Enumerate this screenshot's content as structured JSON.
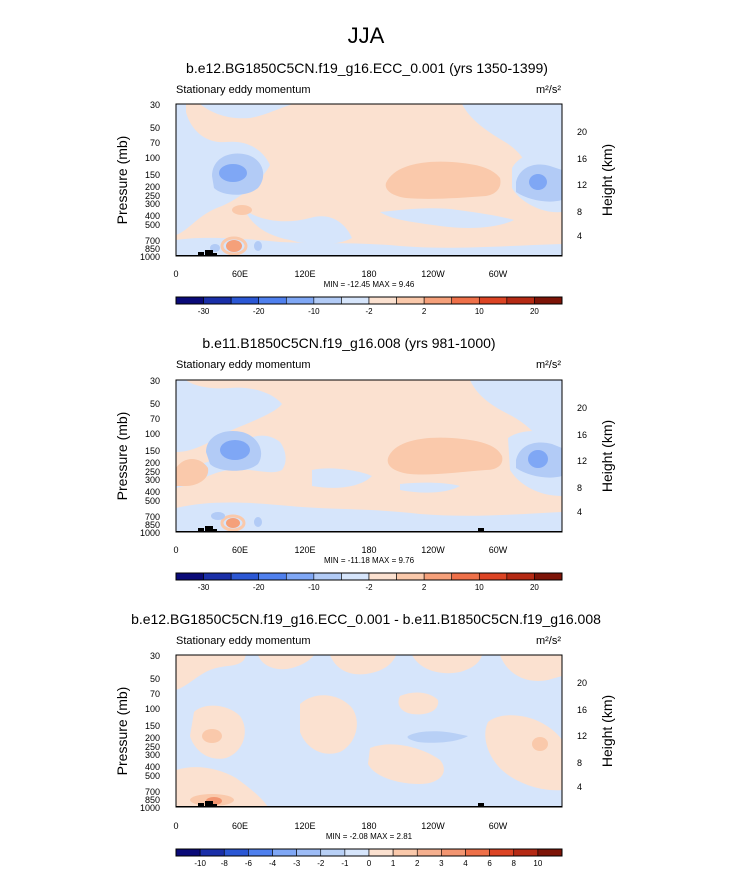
{
  "figure_title": "JJA",
  "chart_data": [
    {
      "type": "heatmap",
      "title": "b.e12.BG1850C5CN.f19_g16.ECC_0.001 (yrs 1350-1399)",
      "subtitle": "Stationary eddy momentum",
      "units": "m²/s²",
      "ylabel": "Pressure (mb)",
      "ylabel_right": "Height (km)",
      "x_ticks": [
        "0",
        "60E",
        "120E",
        "180",
        "120W",
        "60W"
      ],
      "y_ticks": [
        "30",
        "50",
        "70",
        "100",
        "150",
        "200",
        "250",
        "300",
        "400",
        "500",
        "700",
        "850",
        "1000"
      ],
      "y_ticks_right": [
        "20",
        "16",
        "12",
        "8",
        "4"
      ],
      "stats": "MIN = -12.45  MAX =  9.46",
      "min": -12.45,
      "max": 9.46,
      "levels": [
        -30,
        -20,
        -10,
        -2,
        2,
        10,
        20,
        30
      ]
    },
    {
      "type": "heatmap",
      "title": "b.e11.B1850C5CN.f19_g16.008 (yrs 981-1000)",
      "subtitle": "Stationary eddy momentum",
      "units": "m²/s²",
      "ylabel": "Pressure (mb)",
      "ylabel_right": "Height (km)",
      "x_ticks": [
        "0",
        "60E",
        "120E",
        "180",
        "120W",
        "60W"
      ],
      "y_ticks": [
        "30",
        "50",
        "70",
        "100",
        "150",
        "200",
        "250",
        "300",
        "400",
        "500",
        "700",
        "850",
        "1000"
      ],
      "y_ticks_right": [
        "20",
        "16",
        "12",
        "8",
        "4"
      ],
      "stats": "MIN = -11.18  MAX =  9.76",
      "min": -11.18,
      "max": 9.76,
      "levels": [
        -30,
        -20,
        -10,
        -2,
        2,
        10,
        20,
        30
      ]
    },
    {
      "type": "heatmap",
      "title": "b.e12.BG1850C5CN.f19_g16.ECC_0.001 - b.e11.B1850C5CN.f19_g16.008",
      "subtitle": "Stationary eddy momentum",
      "units": "m²/s²",
      "ylabel": "Pressure (mb)",
      "ylabel_right": "Height (km)",
      "x_ticks": [
        "0",
        "60E",
        "120E",
        "180",
        "120W",
        "60W"
      ],
      "y_ticks": [
        "30",
        "50",
        "70",
        "100",
        "150",
        "200",
        "250",
        "300",
        "400",
        "500",
        "700",
        "850",
        "1000"
      ],
      "y_ticks_right": [
        "20",
        "16",
        "12",
        "8",
        "4"
      ],
      "stats": "MIN = -2.08  MAX =  2.81",
      "min": -2.08,
      "max": 2.81,
      "levels": [
        -10,
        -8,
        -6,
        -4,
        -3,
        -2,
        -1,
        0,
        1,
        2,
        3,
        4,
        6,
        8,
        10
      ]
    }
  ],
  "colors": {
    "palette": [
      "#0a0a78",
      "#1a2fa8",
      "#2b57d4",
      "#4f80ee",
      "#7fa7f5",
      "#b2cbf6",
      "#d6e5fb",
      "#fbe1d0",
      "#fac9ab",
      "#f5a07a",
      "#ee7049",
      "#dc4424",
      "#b52a14",
      "#7d1408"
    ],
    "palette_diff": [
      "#0a0a78",
      "#1a2fa8",
      "#2b57d4",
      "#4f80ee",
      "#7fa7f5",
      "#9dbcf6",
      "#b8d0f6",
      "#d6e5fb",
      "#fbe1d0",
      "#fac9ab",
      "#f5b08f",
      "#f29571",
      "#ee7049",
      "#dc4424",
      "#b52a14",
      "#7d1408"
    ]
  }
}
